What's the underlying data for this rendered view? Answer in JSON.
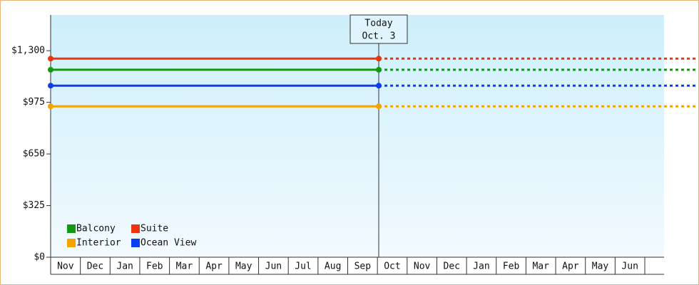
{
  "chart_data": {
    "type": "line",
    "categories": [
      "Nov",
      "Dec",
      "Jan",
      "Feb",
      "Mar",
      "Apr",
      "May",
      "Jun",
      "Jul",
      "Aug",
      "Sep",
      "Oct",
      "Nov",
      "Dec",
      "Jan",
      "Feb",
      "Mar",
      "Apr",
      "May",
      "Jun"
    ],
    "series": [
      {
        "name": "Balcony",
        "color": "#119911",
        "value": 1180
      },
      {
        "name": "Suite",
        "color": "#ee3311",
        "value": 1250
      },
      {
        "name": "Interior",
        "color": "#f4a300",
        "value": 950
      },
      {
        "name": "Ocean View",
        "color": "#0a3ef0",
        "value": 1080
      }
    ],
    "annotation": {
      "title": "Today",
      "date": "Oct. 3"
    },
    "ylim": [
      0,
      1525
    ],
    "yticks": [
      {
        "value": 0,
        "label": "$0"
      },
      {
        "value": 325,
        "label": "$325"
      },
      {
        "value": 650,
        "label": "$650"
      },
      {
        "value": 975,
        "label": "$975"
      },
      {
        "value": 1300,
        "label": "$1,300"
      }
    ],
    "legend": "bottom-left"
  }
}
